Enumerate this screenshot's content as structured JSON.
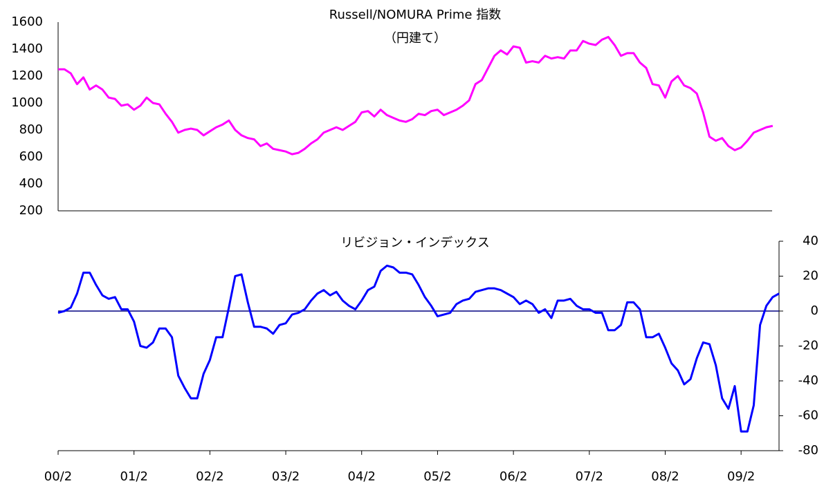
{
  "chart_data": [
    {
      "type": "line",
      "title": "Russell/NOMURA Prime 指数",
      "subtitle": "（円建て）",
      "y_axis_position": "left",
      "ylim": [
        200,
        1600
      ],
      "yticks": [
        200,
        400,
        600,
        800,
        1000,
        1200,
        1400,
        1600
      ],
      "series": [
        {
          "color": "#ff00ff",
          "values": [
            1250,
            1250,
            1220,
            1140,
            1190,
            1100,
            1130,
            1100,
            1040,
            1030,
            980,
            990,
            950,
            980,
            1040,
            1000,
            990,
            920,
            860,
            780,
            800,
            810,
            800,
            760,
            790,
            820,
            840,
            870,
            800,
            760,
            740,
            730,
            680,
            700,
            660,
            650,
            640,
            620,
            630,
            660,
            700,
            730,
            780,
            800,
            820,
            800,
            830,
            860,
            930,
            940,
            900,
            950,
            910,
            890,
            870,
            860,
            880,
            920,
            910,
            940,
            950,
            910,
            930,
            950,
            980,
            1020,
            1140,
            1170,
            1260,
            1350,
            1390,
            1360,
            1420,
            1410,
            1300,
            1310,
            1300,
            1350,
            1330,
            1340,
            1330,
            1390,
            1390,
            1460,
            1440,
            1430,
            1470,
            1490,
            1430,
            1350,
            1370,
            1370,
            1300,
            1260,
            1140,
            1130,
            1040,
            1160,
            1200,
            1130,
            1110,
            1070,
            930,
            750,
            720,
            740,
            680,
            650,
            670,
            720,
            780,
            800,
            820,
            830
          ]
        }
      ]
    },
    {
      "type": "line",
      "title": "リビジョン・インデックス",
      "y_axis_position": "right",
      "ylim": [
        -80,
        40
      ],
      "yticks": [
        -80,
        -60,
        -40,
        -20,
        0,
        20,
        40
      ],
      "categories": [
        "00/2",
        null,
        null,
        null,
        null,
        null,
        null,
        null,
        null,
        null,
        null,
        null,
        "01/2",
        null,
        null,
        null,
        null,
        null,
        null,
        null,
        null,
        null,
        null,
        null,
        "02/2",
        null,
        null,
        null,
        null,
        null,
        null,
        null,
        null,
        null,
        null,
        null,
        "03/2",
        null,
        null,
        null,
        null,
        null,
        null,
        null,
        null,
        null,
        null,
        null,
        "04/2",
        null,
        null,
        null,
        null,
        null,
        null,
        null,
        null,
        null,
        null,
        null,
        "05/2",
        null,
        null,
        null,
        null,
        null,
        null,
        null,
        null,
        null,
        null,
        null,
        "06/2",
        null,
        null,
        null,
        null,
        null,
        null,
        null,
        null,
        null,
        null,
        null,
        "07/2",
        null,
        null,
        null,
        null,
        null,
        null,
        null,
        null,
        null,
        null,
        null,
        "08/2",
        null,
        null,
        null,
        null,
        null,
        null,
        null,
        null,
        null,
        null,
        null,
        "09/2",
        null,
        null,
        null,
        null,
        null,
        null
      ],
      "series": [
        {
          "color": "#0000ff",
          "values": [
            -1,
            0,
            2,
            10,
            22,
            22,
            15,
            9,
            7,
            8,
            1,
            1,
            -6,
            -20,
            -21,
            -18,
            -10,
            -10,
            -15,
            -37,
            -44,
            -50,
            -50,
            -36,
            -28,
            -15,
            -15,
            2,
            20,
            21,
            5,
            -9,
            -9,
            -10,
            -13,
            -8,
            -7,
            -2,
            -1,
            1,
            6,
            10,
            12,
            9,
            11,
            6,
            3,
            1,
            6,
            12,
            14,
            23,
            26,
            25,
            22,
            22,
            21,
            15,
            8,
            3,
            -3,
            -2,
            -1,
            4,
            6,
            7,
            11,
            12,
            13,
            13,
            12,
            10,
            8,
            4,
            6,
            4,
            -1,
            1,
            -4,
            6,
            6,
            7,
            3,
            1,
            1,
            -1,
            -1,
            -11,
            -11,
            -8,
            5,
            5,
            1,
            -15,
            -15,
            -13,
            -21,
            -30,
            -34,
            -42,
            -39,
            -27,
            -18,
            -19,
            -31,
            -50,
            -56,
            -43,
            -69,
            -69,
            -54,
            -8,
            3,
            8,
            10
          ]
        }
      ]
    }
  ]
}
